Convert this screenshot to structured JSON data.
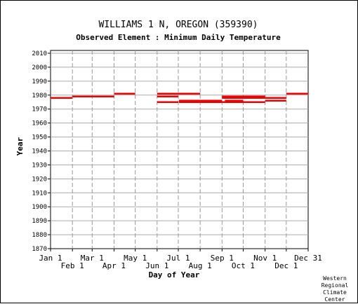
{
  "chart_data": {
    "type": "line",
    "title": "WILLIAMS 1 N, OREGON   (359390)",
    "subtitle": "Observed Element : Minimum Daily Temperature",
    "xlabel": "Day of Year",
    "ylabel": "Year",
    "xlim": [
      1,
      366
    ],
    "ylim": [
      1870,
      2012
    ],
    "grid": true,
    "yticks": [
      1870,
      1880,
      1890,
      1900,
      1910,
      1920,
      1930,
      1940,
      1950,
      1960,
      1970,
      1980,
      1990,
      2000,
      2010
    ],
    "xticks": [
      {
        "label": "Jan 1",
        "day": 1,
        "row": 0
      },
      {
        "label": "Feb 1",
        "day": 32,
        "row": 1
      },
      {
        "label": "Mar 1",
        "day": 60,
        "row": 0
      },
      {
        "label": "Apr 1",
        "day": 91,
        "row": 1
      },
      {
        "label": "May 1",
        "day": 121,
        "row": 0
      },
      {
        "label": "Jun 1",
        "day": 152,
        "row": 1
      },
      {
        "label": "Jul 1",
        "day": 182,
        "row": 0
      },
      {
        "label": "Aug 1",
        "day": 213,
        "row": 1
      },
      {
        "label": "Sep 1",
        "day": 244,
        "row": 0
      },
      {
        "label": "Oct 1",
        "day": 274,
        "row": 1
      },
      {
        "label": "Nov 1",
        "day": 305,
        "row": 0
      },
      {
        "label": "Dec 1",
        "day": 335,
        "row": 1
      },
      {
        "label": "Dec 31",
        "day": 366,
        "row": 0
      }
    ],
    "series": [
      {
        "color": "#ee0000",
        "segments": [
          {
            "year": 1978,
            "start": 1,
            "end": 32
          },
          {
            "year": 1979,
            "start": 32,
            "end": 91
          },
          {
            "year": 1981,
            "start": 91,
            "end": 121
          },
          {
            "year": 1981,
            "start": 152,
            "end": 213
          },
          {
            "year": 1979,
            "start": 152,
            "end": 182
          },
          {
            "year": 1976,
            "start": 183,
            "end": 244
          },
          {
            "year": 1975,
            "start": 152,
            "end": 182
          },
          {
            "year": 1975,
            "start": 183,
            "end": 244
          },
          {
            "year": 1979,
            "start": 244,
            "end": 305
          },
          {
            "year": 1978,
            "start": 244,
            "end": 305
          },
          {
            "year": 1976,
            "start": 248,
            "end": 274
          },
          {
            "year": 1975,
            "start": 244,
            "end": 305
          },
          {
            "year": 1978,
            "start": 305,
            "end": 335
          },
          {
            "year": 1976,
            "start": 305,
            "end": 335
          },
          {
            "year": 1981,
            "start": 335,
            "end": 366
          }
        ]
      }
    ]
  },
  "credit": {
    "lines": [
      "Western",
      "Regional",
      "Climate",
      "Center"
    ]
  }
}
